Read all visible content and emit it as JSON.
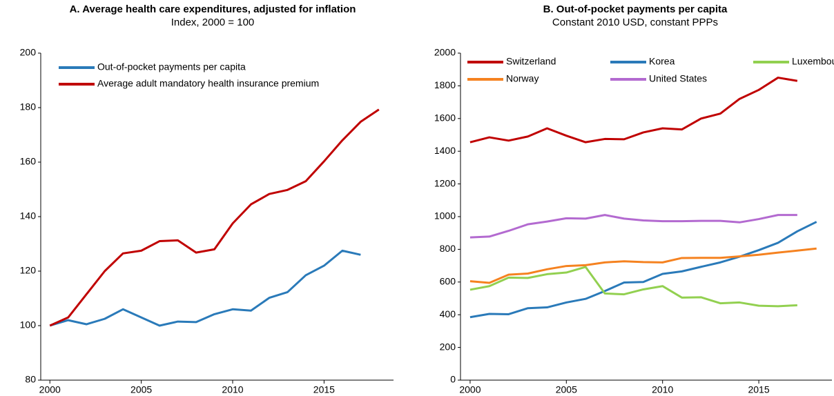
{
  "chart_data": [
    {
      "type": "line",
      "title": "A. Average health care expenditures, adjusted for inflation",
      "subtitle": "Index, 2000 = 100",
      "x": [
        2000,
        2001,
        2002,
        2003,
        2004,
        2005,
        2006,
        2007,
        2008,
        2009,
        2010,
        2011,
        2012,
        2013,
        2014,
        2015,
        2016,
        2017,
        2018
      ],
      "xlim": [
        1999.5,
        2018.8
      ],
      "xticks": [
        2000,
        2005,
        2010,
        2015
      ],
      "ylim": [
        80,
        200
      ],
      "yticks": [
        80,
        100,
        120,
        140,
        160,
        180,
        200
      ],
      "legend": "upper left",
      "series": [
        {
          "name": "Out-of-pocket payments per capita",
          "color": "#2a7ab9",
          "values": [
            100,
            102,
            100.5,
            102.5,
            106,
            103,
            100,
            101.5,
            101.3,
            104.2,
            106,
            105.5,
            110.2,
            112.3,
            118.5,
            122,
            127.5,
            126,
            null
          ]
        },
        {
          "name": "Average adult mandatory health insurance premium",
          "color": "#c00000",
          "values": [
            100,
            103,
            111.5,
            120,
            126.5,
            127.5,
            131,
            131.3,
            126.8,
            128,
            137.5,
            144.5,
            148.3,
            149.8,
            153,
            160.3,
            168,
            174.8,
            179.3
          ]
        }
      ]
    },
    {
      "type": "line",
      "title": "B. Out-of-pocket payments per capita",
      "subtitle": "Constant 2010 USD, constant PPPs",
      "x": [
        2000,
        2001,
        2002,
        2003,
        2004,
        2005,
        2006,
        2007,
        2008,
        2009,
        2010,
        2011,
        2012,
        2013,
        2014,
        2015,
        2016,
        2017,
        2018
      ],
      "xlim": [
        1999.5,
        2018.8
      ],
      "xticks": [
        2000,
        2005,
        2010,
        2015
      ],
      "ylim": [
        0,
        2000
      ],
      "yticks": [
        0,
        200,
        400,
        600,
        800,
        1000,
        1200,
        1400,
        1600,
        1800,
        2000
      ],
      "legend": "upper",
      "series": [
        {
          "name": "Switzerland",
          "color": "#c00000",
          "values": [
            1455,
            1485,
            1465,
            1490,
            1540,
            1495,
            1455,
            1475,
            1473,
            1515,
            1540,
            1533,
            1600,
            1630,
            1720,
            1775,
            1850,
            1830,
            null
          ]
        },
        {
          "name": "Korea",
          "color": "#2a7ab9",
          "values": [
            385,
            405,
            403,
            440,
            445,
            475,
            497,
            545,
            597,
            600,
            650,
            665,
            693,
            720,
            755,
            795,
            840,
            910,
            968
          ]
        },
        {
          "name": "Luxembourg",
          "color": "#92d050",
          "values": [
            553,
            575,
            627,
            625,
            648,
            658,
            692,
            530,
            525,
            555,
            575,
            505,
            507,
            470,
            475,
            455,
            452,
            458,
            null
          ]
        },
        {
          "name": "Norway",
          "color": "#f58220",
          "values": [
            605,
            595,
            645,
            652,
            678,
            698,
            703,
            720,
            727,
            722,
            720,
            747,
            748,
            748,
            757,
            767,
            780,
            792,
            805
          ]
        },
        {
          "name": "United States",
          "color": "#b36ad0",
          "values": [
            873,
            878,
            913,
            953,
            970,
            990,
            988,
            1010,
            988,
            977,
            972,
            972,
            974,
            974,
            965,
            985,
            1010,
            1010,
            null
          ]
        }
      ]
    }
  ]
}
